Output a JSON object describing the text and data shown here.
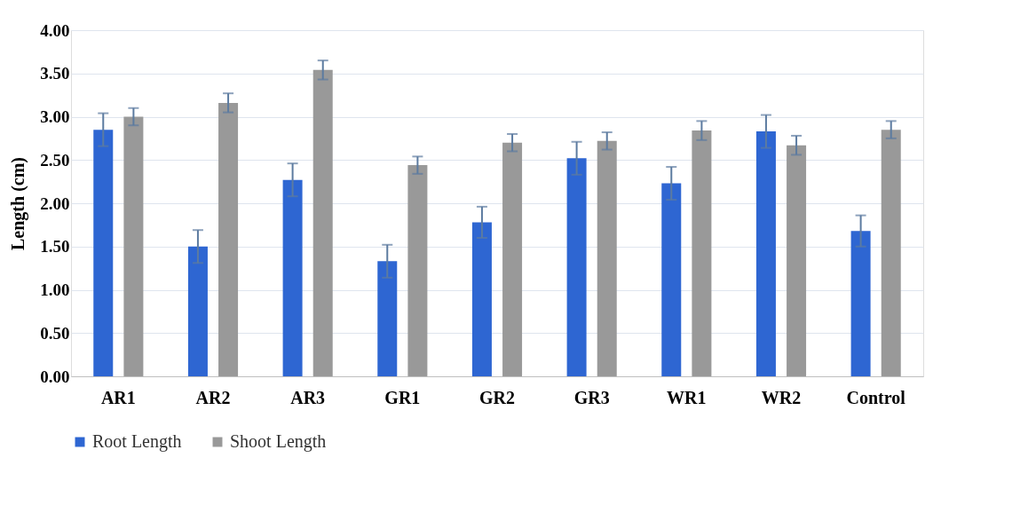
{
  "chart_data": {
    "type": "bar",
    "ylabel": "Length (cm)",
    "categories": [
      "AR1",
      "AR2",
      "AR3",
      "GR1",
      "GR2",
      "GR3",
      "WR1",
      "WR2",
      "Control"
    ],
    "series": [
      {
        "name": "Root Length",
        "color": "#2e66d2",
        "values": [
          2.85,
          1.5,
          2.27,
          1.33,
          1.78,
          2.52,
          2.23,
          2.83,
          1.68
        ],
        "errors": [
          0.19,
          0.19,
          0.19,
          0.19,
          0.18,
          0.19,
          0.19,
          0.19,
          0.18
        ]
      },
      {
        "name": "Shoot Length",
        "color": "#999999",
        "values": [
          3.0,
          3.16,
          3.54,
          2.44,
          2.7,
          2.72,
          2.84,
          2.67,
          2.85
        ],
        "errors": [
          0.1,
          0.11,
          0.11,
          0.1,
          0.1,
          0.1,
          0.11,
          0.11,
          0.1
        ]
      }
    ],
    "ylim": [
      0,
      4
    ],
    "yticks": [
      {
        "value": 0,
        "label": "0.00"
      },
      {
        "value": 0.5,
        "label": "0.50"
      },
      {
        "value": 1,
        "label": "1.00"
      },
      {
        "value": 1.5,
        "label": "1.50"
      },
      {
        "value": 2,
        "label": "2.00"
      },
      {
        "value": 2.5,
        "label": "2.50"
      },
      {
        "value": 3,
        "label": "3.00"
      },
      {
        "value": 3.5,
        "label": "3.50"
      },
      {
        "value": 4,
        "label": "4.00"
      }
    ],
    "grid": "y",
    "legend": "bottom"
  }
}
